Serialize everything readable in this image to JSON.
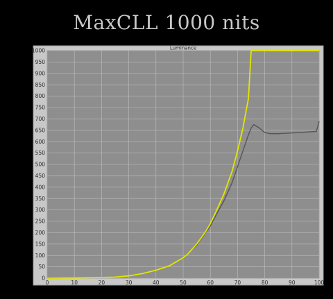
{
  "page": {
    "heading": "MaxCLL 1000 nits"
  },
  "chart_data": {
    "type": "line",
    "title": "Luminance",
    "xlabel": "",
    "ylabel": "",
    "xlim": [
      0,
      100
    ],
    "ylim": [
      0,
      1000
    ],
    "x_ticks": [
      0,
      10,
      20,
      30,
      40,
      50,
      60,
      70,
      80,
      90,
      100
    ],
    "y_ticks": [
      0,
      50,
      100,
      150,
      200,
      250,
      300,
      350,
      400,
      450,
      500,
      550,
      600,
      650,
      700,
      750,
      800,
      850,
      900,
      950,
      1000
    ],
    "grid": true,
    "series": [
      {
        "color": "#e3e600",
        "x": [
          0,
          10,
          20,
          25,
          30,
          35,
          40,
          45,
          50,
          52,
          55,
          58,
          60,
          62,
          65,
          68,
          70,
          72,
          74,
          75,
          80,
          90,
          100
        ],
        "y": [
          0,
          1,
          3,
          5,
          10,
          20,
          35,
          55,
          90,
          110,
          150,
          200,
          240,
          290,
          370,
          470,
          560,
          660,
          790,
          1000,
          1000,
          1000,
          1000
        ]
      },
      {
        "color": "#555555",
        "x": [
          0,
          10,
          20,
          25,
          30,
          35,
          40,
          45,
          50,
          55,
          60,
          62,
          65,
          68,
          70,
          72,
          74,
          75,
          76,
          78,
          80,
          82,
          85,
          90,
          95,
          99,
          100
        ],
        "y": [
          0,
          1,
          3,
          5,
          10,
          20,
          35,
          55,
          90,
          145,
          230,
          275,
          340,
          420,
          490,
          560,
          630,
          660,
          675,
          660,
          640,
          635,
          635,
          638,
          642,
          645,
          690
        ]
      }
    ]
  }
}
